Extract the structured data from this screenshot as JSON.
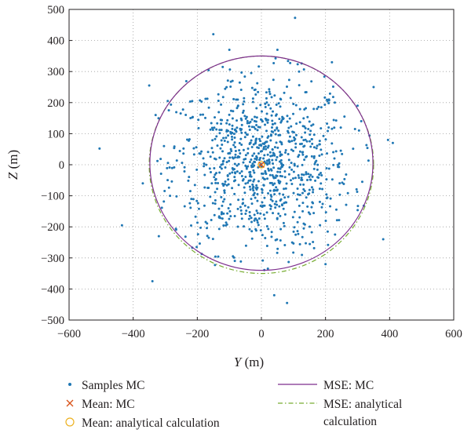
{
  "chart_data": {
    "type": "scatter",
    "title": "",
    "xlabel": {
      "var": "Y",
      "unit": " (m)"
    },
    "ylabel": {
      "var": "Z",
      "unit": " (m)"
    },
    "xlim": [
      -600,
      600
    ],
    "ylim": [
      -500,
      500
    ],
    "xticks": [
      -600,
      -400,
      -200,
      0,
      200,
      400,
      600
    ],
    "yticks": [
      -500,
      -400,
      -300,
      -200,
      -100,
      0,
      100,
      200,
      300,
      400,
      500
    ],
    "xtick_labels": [
      "−600",
      "−400",
      "−200",
      "0",
      "200",
      "400",
      "600"
    ],
    "ytick_labels": [
      "−500",
      "−400",
      "−300",
      "−200",
      "−100",
      "0",
      "100",
      "200",
      "300",
      "400",
      "500"
    ],
    "grid": "dotted",
    "legend_position": "bottom",
    "colors": {
      "samples": "#1f77b4",
      "mean_mc": "#d95319",
      "mean_analytical": "#edb120",
      "mse_mc": "#7e2f8e",
      "mse_analytical": "#77ac30",
      "axis": "#231f20",
      "grid": "#9a9a9a"
    },
    "legend": [
      {
        "key": "samples",
        "label": "Samples MC",
        "marker": "dot"
      },
      {
        "key": "mean_mc",
        "label": "Mean: MC",
        "marker": "cross"
      },
      {
        "key": "mean_analytical",
        "label": "Mean: analytical calculation",
        "marker": "circle"
      },
      {
        "key": "mse_mc",
        "label": "MSE: MC",
        "marker": "solid-line"
      },
      {
        "key": "mse_analytical",
        "label": "MSE: analytical calculation",
        "label_lines": [
          "MSE: analytical",
          "calculation"
        ],
        "marker": "dashdot-line"
      }
    ],
    "series": [
      {
        "key": "samples",
        "name": "Samples MC",
        "count": 1000,
        "spread_std": [
          140,
          140
        ],
        "outliers": [
          [
            -505,
            52
          ],
          [
            -435,
            -195
          ],
          [
            -350,
            255
          ],
          [
            -340,
            -375
          ],
          [
            -370,
            -60
          ],
          [
            -150,
            420
          ],
          [
            -100,
            370
          ],
          [
            105,
            473
          ],
          [
            50,
            370
          ],
          [
            40,
            -420
          ],
          [
            80,
            -445
          ],
          [
            395,
            80
          ],
          [
            410,
            70
          ],
          [
            220,
            330
          ],
          [
            380,
            -240
          ],
          [
            -320,
            -230
          ],
          [
            300,
            190
          ],
          [
            -330,
            160
          ],
          [
            200,
            -320
          ],
          [
            350,
            250
          ]
        ]
      },
      {
        "key": "mean_mc",
        "name": "Mean: MC",
        "points": [
          [
            0,
            0
          ]
        ]
      },
      {
        "key": "mean_analytical",
        "name": "Mean: analytical calculation",
        "points": [
          [
            0,
            0
          ]
        ]
      },
      {
        "key": "mse_mc",
        "name": "MSE: MC",
        "center": [
          0,
          5
        ],
        "radius_y": 348,
        "radius_z": 345
      },
      {
        "key": "mse_analytical",
        "name": "MSE: analytical calculation",
        "center": [
          0,
          0
        ],
        "radius_y": 350,
        "radius_z": 350
      }
    ]
  }
}
